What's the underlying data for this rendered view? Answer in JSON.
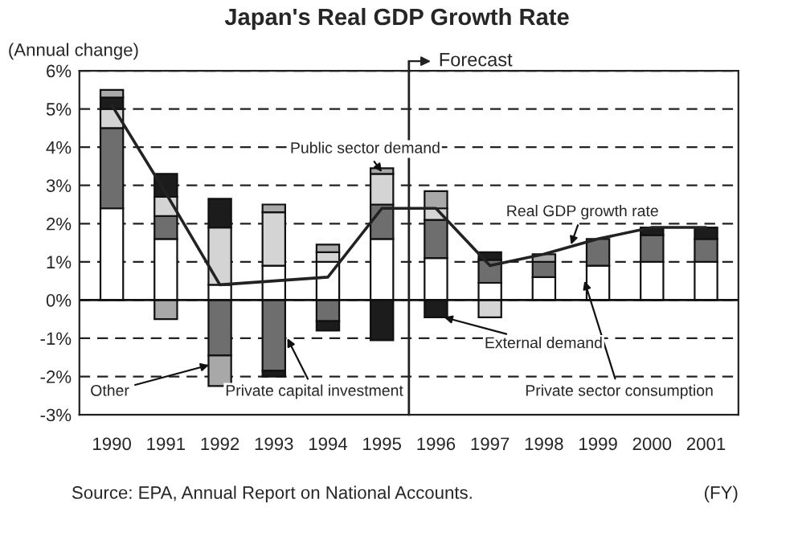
{
  "chart_data": {
    "type": "bar",
    "stacked": true,
    "title": "Japan's Real GDP Growth Rate",
    "ylabel": "(Annual change)",
    "xlabel": "(FY)",
    "categories": [
      "1990",
      "1991",
      "1992",
      "1993",
      "1994",
      "1995",
      "1996",
      "1997",
      "1998",
      "1999",
      "2000",
      "2001"
    ],
    "series": [
      {
        "name": "Private sector consumption",
        "color": "#ffffff",
        "values": [
          2.4,
          1.6,
          0.4,
          0.9,
          1.0,
          1.6,
          1.1,
          0.45,
          0.6,
          0.9,
          1.0,
          1.0
        ]
      },
      {
        "name": "Private capital investment",
        "color": "#6e6e6e",
        "values": [
          2.1,
          0.6,
          -1.45,
          -1.85,
          -0.55,
          0.9,
          1.0,
          0.6,
          0.4,
          0.7,
          0.7,
          0.6
        ]
      },
      {
        "name": "Public sector demand",
        "color": "#d4d4d4",
        "values": [
          0.5,
          0.5,
          1.5,
          1.4,
          0.25,
          0.8,
          0.3,
          -0.45,
          null,
          null,
          null,
          null
        ]
      },
      {
        "name": "External demand",
        "color": "#1c1c1c",
        "values": [
          0.3,
          0.6,
          0.75,
          -0.15,
          -0.25,
          -1.05,
          -0.45,
          0.2,
          null,
          null,
          0.2,
          0.3
        ]
      },
      {
        "name": "Other",
        "color": "#a8a8a8",
        "values": [
          0.2,
          -0.5,
          -0.8,
          0.2,
          0.2,
          0.15,
          0.45,
          null,
          0.2,
          null,
          null,
          null
        ]
      },
      {
        "name": "Real GDP growth rate",
        "type": "line",
        "color": "#222222",
        "values": [
          5.1,
          2.8,
          0.4,
          0.5,
          0.6,
          2.4,
          2.4,
          0.9,
          1.2,
          1.6,
          1.9,
          1.9
        ]
      }
    ],
    "ylim": [
      -3,
      6
    ],
    "yticks": [
      {
        "value": -3,
        "label": "-3%"
      },
      {
        "value": -2,
        "label": "-2%"
      },
      {
        "value": -1,
        "label": "-1%"
      },
      {
        "value": 0,
        "label": "0%"
      },
      {
        "value": 1,
        "label": "1%"
      },
      {
        "value": 2,
        "label": "2%"
      },
      {
        "value": 3,
        "label": "3%"
      },
      {
        "value": 4,
        "label": "4%"
      },
      {
        "value": 5,
        "label": "5%"
      },
      {
        "value": 6,
        "label": "6%"
      }
    ],
    "grid": "y",
    "legend": false,
    "ref_lines": [
      {
        "axis": "x",
        "value": "1996",
        "label": "Forecast"
      }
    ],
    "annotations": [
      "Source: EPA, Annual Report on National Accounts."
    ]
  }
}
